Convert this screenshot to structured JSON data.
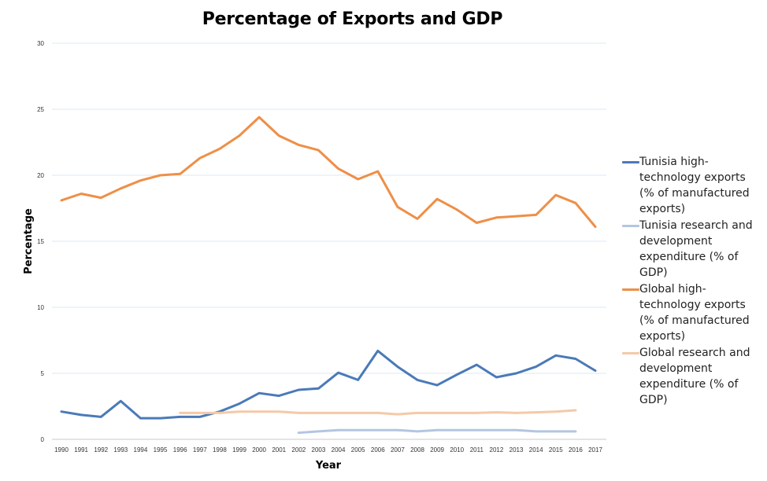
{
  "chart_data": {
    "type": "line",
    "title": "Percentage of Exports and GDP",
    "xlabel": "Year",
    "ylabel": "Percentage",
    "ylim": [
      0,
      30
    ],
    "yticks": [
      0,
      5,
      10,
      15,
      20,
      25,
      30
    ],
    "grid": true,
    "legend_position": "right",
    "x": [
      "1990",
      "1991",
      "1992",
      "1993",
      "1994",
      "1995",
      "1996",
      "1997",
      "1998",
      "1999",
      "2000",
      "2001",
      "2002",
      "2003",
      "2004",
      "2005",
      "2006",
      "2007",
      "2008",
      "2009",
      "2010",
      "2011",
      "2012",
      "2013",
      "2014",
      "2015",
      "2016",
      "2017"
    ],
    "series": [
      {
        "name": "Tunisia high-technology exports (% of manufactured exports)",
        "color": "#4a7ab8",
        "values": [
          2.1,
          1.85,
          1.7,
          2.9,
          1.6,
          1.6,
          1.7,
          1.7,
          2.1,
          2.7,
          3.5,
          3.3,
          3.75,
          3.85,
          5.05,
          4.5,
          6.7,
          5.5,
          4.5,
          4.1,
          4.9,
          5.65,
          4.7,
          5.0,
          5.5,
          6.35,
          6.1,
          5.2
        ]
      },
      {
        "name": "Tunisia research and development expenditure (% of GDP)",
        "color": "#b3c6e0",
        "values": [
          null,
          null,
          null,
          null,
          null,
          null,
          null,
          null,
          null,
          null,
          null,
          null,
          0.5,
          0.6,
          0.7,
          0.7,
          0.7,
          0.7,
          0.6,
          0.7,
          0.7,
          0.7,
          0.7,
          0.7,
          0.6,
          0.6,
          0.6,
          null
        ]
      },
      {
        "name": "Global high-technology exports (% of manufactured exports)",
        "color": "#ee8f47",
        "values": [
          18.1,
          18.6,
          18.3,
          19.0,
          19.6,
          20.0,
          20.1,
          21.3,
          22.0,
          23.0,
          24.4,
          23.0,
          22.3,
          21.9,
          20.5,
          19.7,
          20.3,
          17.6,
          16.7,
          18.2,
          17.4,
          16.4,
          16.8,
          16.9,
          17.0,
          18.5,
          17.9,
          16.1
        ]
      },
      {
        "name": "Global research and development expenditure (% of GDP)",
        "color": "#f5c9a7",
        "values": [
          null,
          null,
          null,
          null,
          null,
          null,
          2.0,
          2.0,
          2.0,
          2.1,
          2.1,
          2.1,
          2.0,
          2.0,
          2.0,
          2.0,
          2.0,
          1.9,
          2.0,
          2.0,
          2.0,
          2.0,
          2.05,
          2.0,
          2.05,
          2.1,
          2.2,
          null
        ]
      }
    ]
  }
}
